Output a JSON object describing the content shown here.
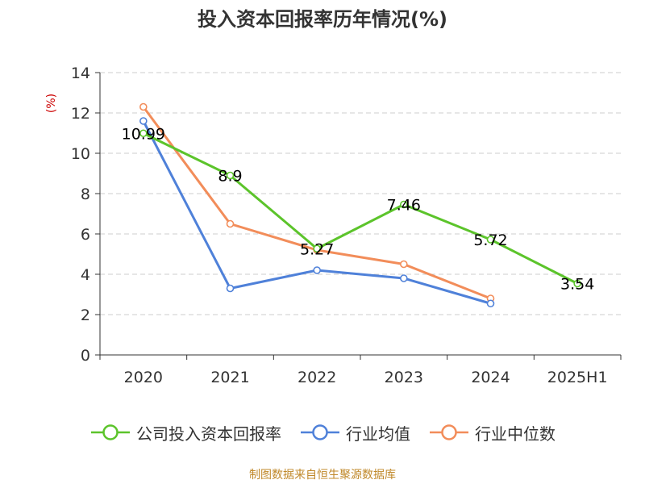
{
  "chart_data": {
    "type": "line",
    "title": "投入资本回报率历年情况(%)",
    "ylabel": "(%)",
    "xlabel": "",
    "categories": [
      "2020",
      "2021",
      "2022",
      "2023",
      "2024",
      "2025H1"
    ],
    "ylim": [
      0,
      14
    ],
    "yticks": [
      "0",
      "2",
      "4",
      "6",
      "8",
      "10",
      "12",
      "14"
    ],
    "grid": true,
    "legend_position": "bottom",
    "series": [
      {
        "name": "公司投入资本回报率",
        "color": "#5cc42b",
        "values": [
          10.99,
          8.9,
          5.27,
          7.46,
          5.72,
          3.54
        ],
        "labels": [
          "10.99",
          "8.9",
          "5.27",
          "7.46",
          "5.72",
          "3.54"
        ]
      },
      {
        "name": "行业均值",
        "color": "#4f81d9",
        "values": [
          11.6,
          3.3,
          4.2,
          3.8,
          2.55,
          null
        ]
      },
      {
        "name": "行业中位数",
        "color": "#f28d5a",
        "values": [
          12.3,
          6.5,
          5.2,
          4.5,
          2.8,
          null
        ]
      }
    ]
  },
  "source": "制图数据来自恒生聚源数据库",
  "colors": {
    "ylabel": "#cc0000",
    "grid": "#cccccc",
    "axis": "#333333",
    "source": "#c0882a"
  }
}
